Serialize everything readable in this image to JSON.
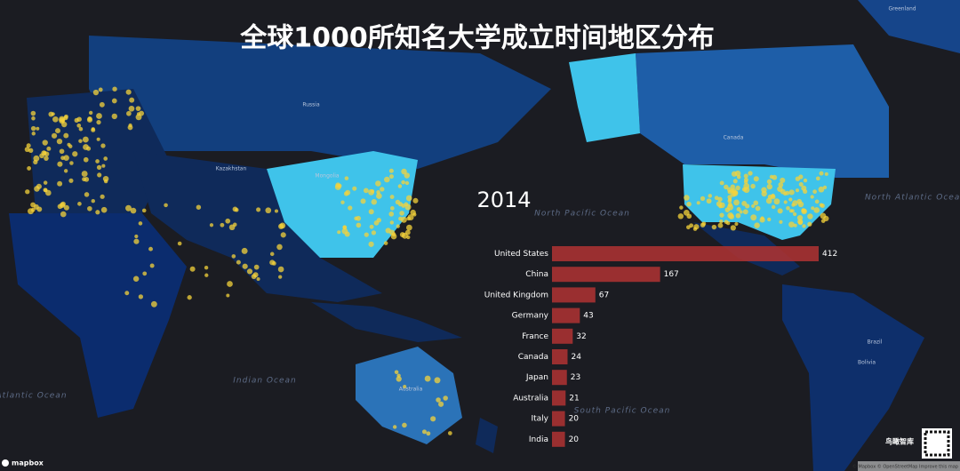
{
  "chart_data": {
    "type": "bar",
    "orientation": "horizontal",
    "title": "全球1000所知名大学成立时间地区分布",
    "annotation": "2014",
    "categories": [
      "United States",
      "China",
      "United Kingdom",
      "Germany",
      "France",
      "Canada",
      "Japan",
      "Australia",
      "Italy",
      "India"
    ],
    "values": [
      412,
      167,
      67,
      43,
      32,
      24,
      23,
      21,
      20,
      20
    ],
    "color": "#a83232"
  },
  "map": {
    "labels": [
      "North Pacific Ocean",
      "South Pacific Ocean",
      "Indian Ocean",
      "North Atlantic Ocean",
      "South Atlantic Ocean",
      "Russia",
      "Canada",
      "Kazakhstan",
      "Mongolia",
      "Australia",
      "Brazil",
      "Greenland",
      "Bolivia"
    ]
  },
  "footer": {
    "logo": "mapbox",
    "attribution": "© Mapbox © OpenStreetMap Improve this map",
    "brand": "鸟瞰智库"
  }
}
